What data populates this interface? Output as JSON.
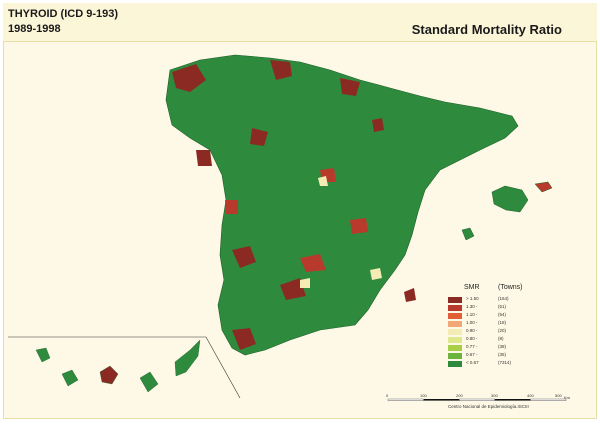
{
  "header": {
    "title": "THYROID (ICD 9-193)",
    "years": "1989-1998",
    "right_title": "Standard Mortality Ratio"
  },
  "legend": {
    "heading_smr": "SMR",
    "heading_towns": "(Towns)",
    "items": [
      {
        "label": "> 1.50",
        "count": "(164)",
        "color": "#8b2a22"
      },
      {
        "label": "1.30 -",
        "count": "(51)",
        "color": "#b83a2c"
      },
      {
        "label": "1.10 -",
        "count": "(54)",
        "color": "#e05f34"
      },
      {
        "label": "1.00 -",
        "count": "(18)",
        "color": "#f1a874"
      },
      {
        "label": "0.90 -",
        "count": "(20)",
        "color": "#f4ecb4"
      },
      {
        "label": "0.80 -",
        "count": "(8)",
        "color": "#dde98c"
      },
      {
        "label": "0.77 -",
        "count": "(38)",
        "color": "#a9cf46"
      },
      {
        "label": "0.67 -",
        "count": "(35)",
        "color": "#6db43f"
      },
      {
        "label": "< 0.67",
        "count": "(7314)",
        "color": "#2e8b3e"
      }
    ]
  },
  "scale": {
    "ticks": [
      "0",
      "100",
      "200",
      "300",
      "400",
      "500"
    ],
    "unit": "Km"
  },
  "credit": "Centro Nacional de Epidemiología.ISCIII",
  "colors": {
    "land": "#2e8b3e",
    "high": "#8b2a22",
    "mid_high": "#b83a2c",
    "sea": "#fdf9e6",
    "header": "#fbf6d8"
  }
}
